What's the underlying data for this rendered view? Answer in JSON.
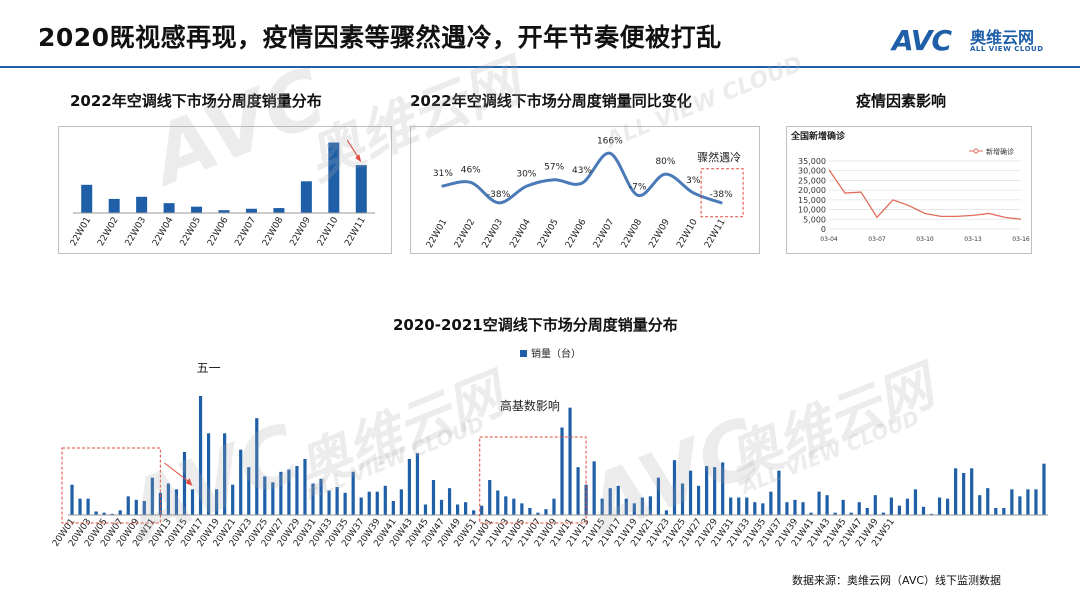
{
  "header": {
    "title": "2020既视感再现，疫情因素等骤然遇冷，开年节奏便被打乱",
    "logo": {
      "mark": "AVC",
      "name_cn": "奥维云网",
      "name_en": "ALL VIEW CLOUD"
    }
  },
  "colors": {
    "bar": "#1f5fa8",
    "line": "#4a7ab8",
    "covid": "#e26d5a",
    "highlight": "#e04a3c",
    "rule": "#1f5fa8"
  },
  "watermark": {
    "mark": "AVC",
    "name_cn": "奥维云网",
    "name_en": "ALL VIEW CLOUD"
  },
  "chart_data": [
    {
      "id": "weekly_2022",
      "type": "bar",
      "title": "2022年空调线下市场分周度销量分布",
      "categories": [
        "22W01",
        "22W02",
        "22W03",
        "22W04",
        "22W05",
        "22W06",
        "22W07",
        "22W08",
        "22W09",
        "22W10",
        "22W11"
      ],
      "values": [
        40,
        20,
        23,
        14,
        9,
        4,
        6,
        7,
        45,
        100,
        68
      ],
      "ylim": [
        0,
        105
      ],
      "annotation": "arrow pointing down to 22W11"
    },
    {
      "id": "yoy_2022",
      "type": "line",
      "title": "2022年空调线下市场分周度销量同比变化",
      "categories": [
        "22W01",
        "22W02",
        "22W03",
        "22W04",
        "22W05",
        "22W06",
        "22W07",
        "22W08",
        "22W09",
        "22W10",
        "22W11"
      ],
      "values": [
        31,
        46,
        -38,
        30,
        57,
        43,
        166,
        -7,
        80,
        3,
        -38
      ],
      "labels": [
        "31%",
        "46%",
        "-38%",
        "30%",
        "57%",
        "43%",
        "166%",
        "-7%",
        "80%",
        "3%",
        "-38%"
      ],
      "ylim": [
        -80,
        200
      ],
      "annotation": "骤然遇冷"
    },
    {
      "id": "covid",
      "type": "line",
      "title": "疫情因素影响",
      "subtitle": "全国新增确诊",
      "legend": "新增确诊",
      "legend_position": "top-right",
      "series_name": "新增确诊",
      "x_ticks": [
        "03-04",
        "03-07",
        "03-10",
        "03-13",
        "03-16"
      ],
      "y_ticks": [
        "0",
        "5,000",
        "10,000",
        "15,000",
        "20,000",
        "25,000",
        "30,000",
        "35,000"
      ],
      "ylim": [
        0,
        35000
      ],
      "values": [
        30500,
        18500,
        19000,
        6000,
        15000,
        12000,
        8000,
        6500,
        6500,
        7000,
        8000,
        6000,
        5000
      ]
    },
    {
      "id": "weekly_2020_2021",
      "type": "bar",
      "title": "2020-2021空调线下市场分周度销量分布",
      "legend": "销量（台）",
      "legend_position": "top-center",
      "annotations": [
        "五一",
        "高基数影响"
      ],
      "x_tick_labels": [
        "20W01",
        "20W03",
        "20W05",
        "20W07",
        "20W09",
        "20W11",
        "20W13",
        "20W15",
        "20W17",
        "20W19",
        "20W21",
        "20W23",
        "20W25",
        "20W27",
        "20W29",
        "20W31",
        "20W33",
        "20W35",
        "20W37",
        "20W39",
        "20W41",
        "20W43",
        "20W45",
        "20W47",
        "20W49",
        "20W51",
        "21W01",
        "21W03",
        "21W05",
        "21W07",
        "21W09",
        "21W11",
        "21W13",
        "21W15",
        "21W17",
        "21W19",
        "21W21",
        "21W23",
        "21W25",
        "21W27",
        "21W29",
        "21W31",
        "21W33",
        "21W35",
        "21W37",
        "21W39",
        "21W41",
        "21W43",
        "21W45",
        "21W47",
        "21W49",
        "21W51"
      ],
      "values": [
        26,
        14,
        14,
        3,
        2,
        1,
        4,
        16,
        13,
        12,
        32,
        19,
        27,
        22,
        54,
        22,
        102,
        70,
        22,
        70,
        26,
        56,
        41,
        83,
        33,
        28,
        37,
        39,
        42,
        48,
        27,
        31,
        21,
        24,
        19,
        37,
        15,
        20,
        20,
        25,
        12,
        22,
        48,
        53,
        9,
        30,
        13,
        23,
        9,
        11,
        4,
        8,
        30,
        21,
        16,
        14,
        10,
        6,
        2,
        5,
        14,
        75,
        92,
        41,
        26,
        46,
        14,
        23,
        25,
        14,
        10,
        15,
        16,
        32,
        4,
        47,
        27,
        38,
        25,
        42,
        41,
        45,
        15,
        15,
        15,
        11,
        10,
        20,
        38,
        11,
        13,
        11,
        2,
        20,
        17,
        2,
        13,
        2,
        11,
        6,
        17,
        2,
        15,
        8,
        14,
        22,
        7,
        1,
        15,
        14,
        40,
        36,
        40,
        17,
        23,
        6,
        6,
        22,
        16,
        22,
        22,
        44
      ]
    }
  ],
  "source": "数据来源：奥维云网（AVC）线下监测数据"
}
